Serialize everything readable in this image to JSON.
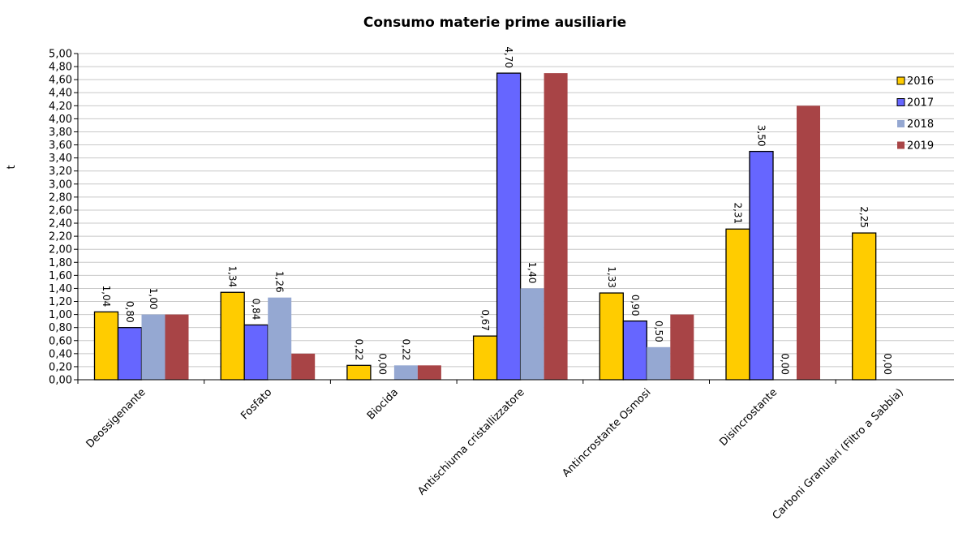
{
  "chart_data": {
    "type": "bar",
    "title": "Consumo materie prime ausiliarie",
    "xlabel": "",
    "ylabel": "t",
    "ylim": [
      0,
      5
    ],
    "y_tick_step": 0.2,
    "y_tick_labels": [
      "0,00",
      "0,20",
      "0,40",
      "0,60",
      "0,80",
      "1,00",
      "1,20",
      "1,40",
      "1,60",
      "1,80",
      "2,00",
      "2,20",
      "2,40",
      "2,60",
      "2,80",
      "3,00",
      "3,20",
      "3,40",
      "3,60",
      "3,80",
      "4,00",
      "4,20",
      "4,40",
      "4,60",
      "4,80",
      "5,00"
    ],
    "grid": true,
    "legend_position": "right",
    "categories": [
      "Deossigenante",
      "Fosfato",
      "Biocida",
      "Antischiuma cristallizzatore",
      "Antincrostante Osmosi",
      "Disincrostante",
      "Carboni Granulari (Filtro a Sabbia)"
    ],
    "series": [
      {
        "name": "2016",
        "color": "#FFCC00",
        "values": [
          1.04,
          1.34,
          0.22,
          0.67,
          1.33,
          2.31,
          2.25
        ],
        "labels": [
          "1,04",
          "1,34",
          "0,22",
          "0,67",
          "1,33",
          "2,31",
          "2,25"
        ]
      },
      {
        "name": "2017",
        "color": "#6666FF",
        "values": [
          0.8,
          0.84,
          0.0,
          4.7,
          0.9,
          3.5,
          0.0
        ],
        "labels": [
          "0,80",
          "0,84",
          "0,00",
          "4,70",
          "0,90",
          "3,50",
          "0,00"
        ]
      },
      {
        "name": "2018",
        "color": "#95A8D2",
        "values": [
          1.0,
          1.26,
          0.22,
          1.4,
          0.5,
          0.0,
          null
        ],
        "labels": [
          "1,00",
          "1,26",
          "0,22",
          "1,40",
          "0,50",
          "0,00",
          ""
        ]
      },
      {
        "name": "2019",
        "color": "#A84446",
        "values": [
          1.0,
          0.4,
          0.22,
          4.7,
          1.0,
          4.2,
          null
        ],
        "labels": [
          "",
          "",
          "",
          "",
          "",
          "",
          ""
        ]
      }
    ]
  }
}
